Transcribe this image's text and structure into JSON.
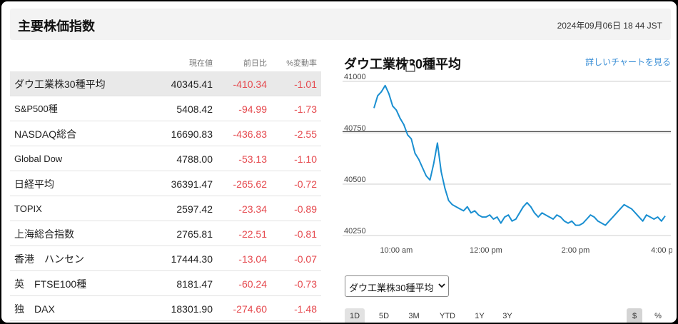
{
  "header": {
    "title": "主要株価指数",
    "timestamp": "2024年09月06日 18 44 JST"
  },
  "table": {
    "columns": [
      "現在値",
      "前日比",
      "%変動率"
    ],
    "rows": [
      {
        "name": "ダウ工業株30種平均",
        "price": "40345.41",
        "change": "-410.34",
        "percent": "-1.01"
      },
      {
        "name": "S&P500種",
        "price": "5408.42",
        "change": "-94.99",
        "percent": "-1.73"
      },
      {
        "name": "NASDAQ総合",
        "price": "16690.83",
        "change": "-436.83",
        "percent": "-2.55"
      },
      {
        "name": "Global Dow",
        "price": "4788.00",
        "change": "-53.13",
        "percent": "-1.10"
      },
      {
        "name": "日経平均",
        "price": "36391.47",
        "change": "-265.62",
        "percent": "-0.72"
      },
      {
        "name": "TOPIX",
        "price": "2597.42",
        "change": "-23.34",
        "percent": "-0.89"
      },
      {
        "name": "上海総合指数",
        "price": "2765.81",
        "change": "-22.51",
        "percent": "-0.81"
      },
      {
        "name": "香港　ハンセン",
        "price": "17444.30",
        "change": "-13.04",
        "percent": "-0.07"
      },
      {
        "name": "英　FTSE100種",
        "price": "8181.47",
        "change": "-60.24",
        "percent": "-0.73"
      },
      {
        "name": "独　DAX",
        "price": "18301.90",
        "change": "-274.60",
        "percent": "-1.48"
      }
    ]
  },
  "chart": {
    "title": "ダウ工業株30種平均",
    "detail_link": "詳しいチャートを見る",
    "line_color": "#1a8fd1",
    "y_ticks": [
      "41000",
      "40750",
      "40500",
      "40250"
    ],
    "x_ticks": [
      "10:00 am",
      "12:00 pm",
      "2:00 pm",
      "4:00 pm"
    ]
  },
  "chart_data": {
    "type": "line",
    "title": "ダウ工業株30種平均",
    "xlabel": "",
    "ylabel": "",
    "ylim": [
      40250,
      41000
    ],
    "previous_close": 40755.75,
    "x_range": [
      "9:30 am",
      "4:00 pm"
    ],
    "x": [
      "9:30",
      "9:35",
      "9:40",
      "9:45",
      "9:50",
      "9:55",
      "10:00",
      "10:05",
      "10:10",
      "10:15",
      "10:20",
      "10:25",
      "10:30",
      "10:35",
      "10:40",
      "10:45",
      "10:50",
      "10:55",
      "11:00",
      "11:05",
      "11:10",
      "11:15",
      "11:20",
      "11:25",
      "11:30",
      "11:35",
      "11:40",
      "11:45",
      "11:50",
      "11:55",
      "12:00",
      "12:05",
      "12:10",
      "12:15",
      "12:20",
      "12:25",
      "12:30",
      "12:35",
      "12:40",
      "12:45",
      "12:50",
      "12:55",
      "13:00",
      "13:05",
      "13:10",
      "13:15",
      "13:20",
      "13:25",
      "13:30",
      "13:35",
      "13:40",
      "13:45",
      "13:50",
      "13:55",
      "14:00",
      "14:05",
      "14:10",
      "14:15",
      "14:20",
      "14:25",
      "14:30",
      "14:35",
      "14:40",
      "14:45",
      "14:50",
      "14:55",
      "15:00",
      "15:05",
      "15:10",
      "15:15",
      "15:20",
      "15:25",
      "15:30",
      "15:35",
      "15:40",
      "15:45",
      "15:50",
      "15:55",
      "16:00"
    ],
    "values": [
      40870,
      40930,
      40950,
      40980,
      40940,
      40880,
      40860,
      40820,
      40790,
      40740,
      40720,
      40650,
      40620,
      40580,
      40540,
      40520,
      40600,
      40700,
      40560,
      40480,
      40420,
      40400,
      40390,
      40380,
      40370,
      40390,
      40360,
      40370,
      40350,
      40340,
      40340,
      40350,
      40330,
      40340,
      40310,
      40340,
      40350,
      40320,
      40330,
      40360,
      40390,
      40410,
      40390,
      40360,
      40340,
      40360,
      40350,
      40340,
      40330,
      40350,
      40340,
      40320,
      40310,
      40320,
      40300,
      40300,
      40310,
      40330,
      40350,
      40340,
      40320,
      40310,
      40300,
      40320,
      40340,
      40360,
      40380,
      40400,
      40390,
      40380,
      40360,
      40340,
      40320,
      40350,
      40340,
      40330,
      40340,
      40320,
      40345
    ]
  },
  "controls": {
    "select_value": "ダウ工業株30種平均",
    "ranges": [
      "1D",
      "5D",
      "3M",
      "YTD",
      "1Y",
      "3Y"
    ],
    "active_range": "1D",
    "units": [
      "$",
      "%"
    ],
    "active_unit": "$"
  }
}
